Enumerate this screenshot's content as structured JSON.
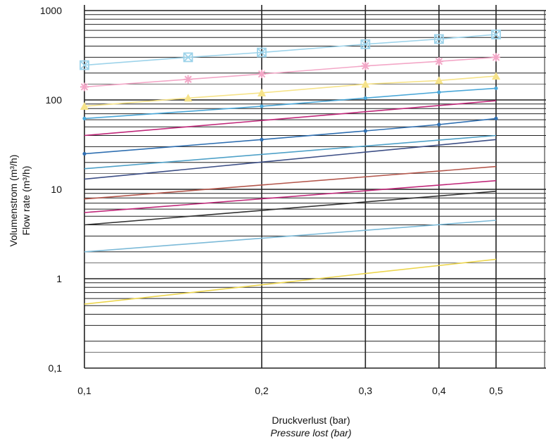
{
  "chart_data": {
    "type": "line",
    "title": "",
    "xlabel": "Druckverlust (bar)",
    "xlabel_secondary": "Pressure lost (bar)",
    "ylabel": "Volumenstrom (m³/h)",
    "ylabel_secondary": "Flow rate (m³/h)",
    "x_scale": "log",
    "y_scale": "log",
    "xlim": [
      0.1,
      0.63
    ],
    "ylim": [
      0.1,
      1000
    ],
    "x_ticks": [
      0.1,
      0.2,
      0.3,
      0.4,
      0.5
    ],
    "x_tick_labels": [
      "0,1",
      "0,2",
      "0,3",
      "0,4",
      "0,5"
    ],
    "y_ticks": [
      0.1,
      1,
      10,
      100,
      1000
    ],
    "y_tick_labels": [
      "0,1",
      "1",
      "10",
      "100",
      "1000"
    ],
    "grid": true,
    "legend": "none",
    "series": [
      {
        "color": "#9dd3ea",
        "marker": "x-box",
        "x": [
          0.1,
          0.15,
          0.2,
          0.3,
          0.4,
          0.5
        ],
        "y": [
          245,
          300,
          340,
          420,
          480,
          540
        ]
      },
      {
        "color": "#f3a7c7",
        "marker": "star",
        "x": [
          0.1,
          0.15,
          0.2,
          0.3,
          0.4,
          0.5
        ],
        "y": [
          140,
          170,
          195,
          240,
          270,
          300
        ]
      },
      {
        "color": "#f6e38a",
        "marker": "triangle",
        "x": [
          0.1,
          0.15,
          0.2,
          0.3,
          0.4,
          0.5
        ],
        "y": [
          85,
          105,
          120,
          150,
          165,
          185
        ]
      },
      {
        "color": "#4aa7d8",
        "marker": "dot",
        "x": [
          0.1,
          0.2,
          0.3,
          0.4,
          0.5
        ],
        "y": [
          62,
          85,
          105,
          122,
          135
        ]
      },
      {
        "color": "#c0287a",
        "marker": "none",
        "x": [
          0.1,
          0.5
        ],
        "y": [
          40,
          98
        ]
      },
      {
        "color": "#2f6fb1",
        "marker": "dot",
        "x": [
          0.1,
          0.2,
          0.3,
          0.4,
          0.5
        ],
        "y": [
          25,
          36,
          45,
          53,
          62
        ]
      },
      {
        "color": "#4fa1c8",
        "marker": "none",
        "x": [
          0.1,
          0.5
        ],
        "y": [
          17,
          40
        ]
      },
      {
        "color": "#3d4f86",
        "marker": "none",
        "x": [
          0.1,
          0.5
        ],
        "y": [
          13,
          36
        ]
      },
      {
        "color": "#b4574c",
        "marker": "none",
        "x": [
          0.1,
          0.5
        ],
        "y": [
          7.8,
          18
        ]
      },
      {
        "color": "#c0287a",
        "marker": "none",
        "x": [
          0.1,
          0.5
        ],
        "y": [
          5.5,
          12.5
        ]
      },
      {
        "color": "#333333",
        "marker": "none",
        "x": [
          0.1,
          0.5
        ],
        "y": [
          4.0,
          9.5
        ]
      },
      {
        "color": "#7cbad8",
        "marker": "none",
        "x": [
          0.1,
          0.5
        ],
        "y": [
          2.0,
          4.5
        ]
      },
      {
        "color": "#ecd54e",
        "marker": "none",
        "x": [
          0.1,
          0.5
        ],
        "y": [
          0.52,
          1.65
        ]
      }
    ]
  }
}
